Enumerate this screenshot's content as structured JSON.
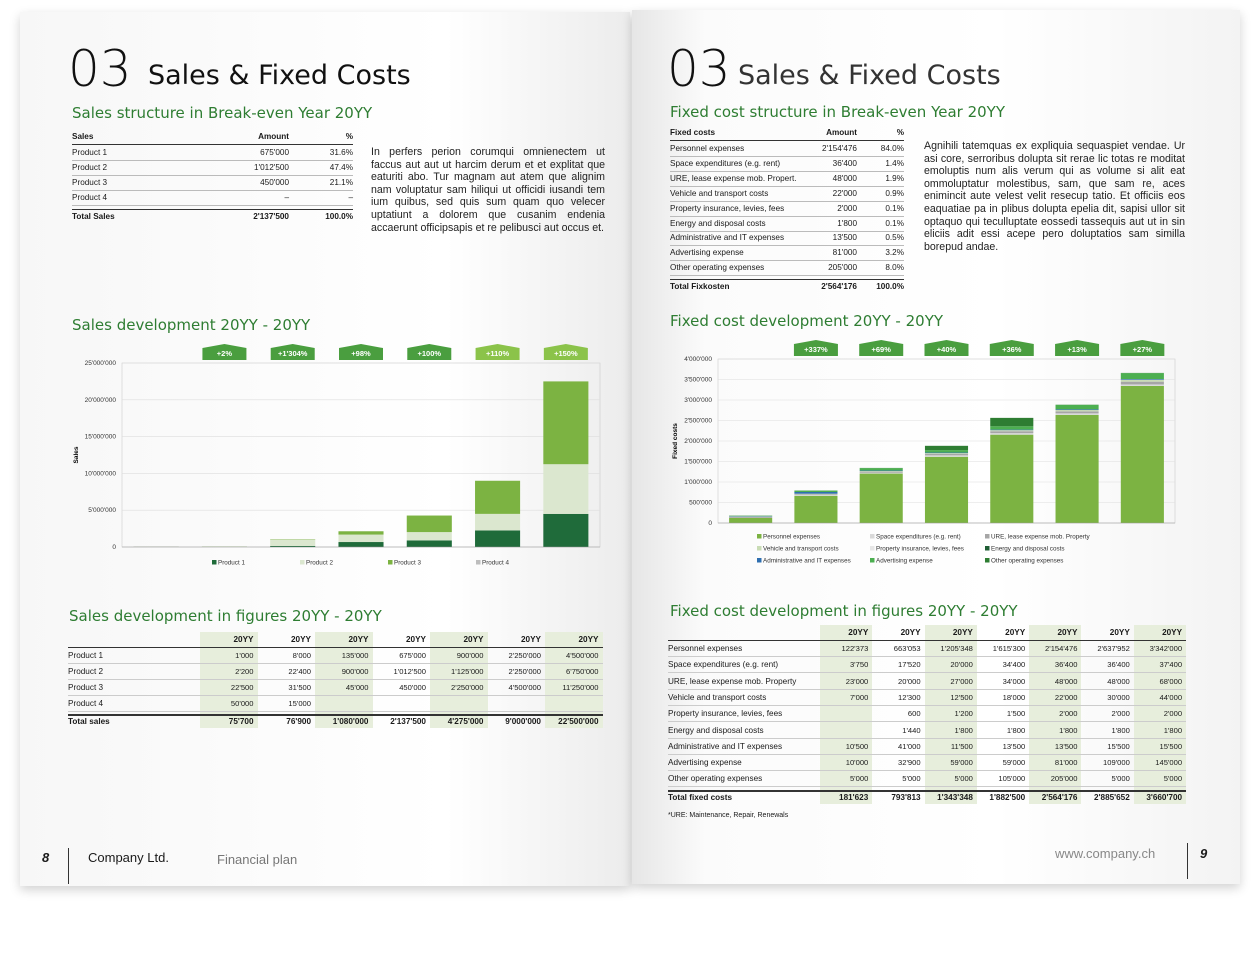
{
  "left": {
    "section_number": "03",
    "section_title": "Sales & Fixed Costs",
    "structure_title": "Sales structure in Break-even Year 20YY",
    "structure_table": {
      "header": [
        "Sales",
        "Amount",
        "%"
      ],
      "rows": [
        [
          "Product 1",
          "675'000",
          "31.6%"
        ],
        [
          "Product 2",
          "1'012'500",
          "47.4%"
        ],
        [
          "Product 3",
          "450'000",
          "21.1%"
        ],
        [
          "Product 4",
          "–",
          "–"
        ]
      ],
      "total": [
        "Total Sales",
        "2'137'500",
        "100.0%"
      ]
    },
    "paragraph": "In perfers perion corumqui omnienectem ut faccus aut aut ut harcim derum et et explitat que eaturiti abo. Tur magnam aut atem que alignim nam voluptatur sam hiliqui ut officidi iusandi tem ium quibus, sed quis sum quam quo velecer uptatiunt a dolorem que cusanim endenia accaerunt officipsapis et re pelibusci aut occus et.",
    "chart_title": "Sales development 20YY - 20YY",
    "figures_title": "Sales development in figures 20YY - 20YY",
    "figures_table": {
      "header": [
        "20YY",
        "20YY",
        "20YY",
        "20YY",
        "20YY",
        "20YY",
        "20YY"
      ],
      "rows": [
        [
          "Product 1",
          "1'000",
          "8'000",
          "135'000",
          "675'000",
          "900'000",
          "2'250'000",
          "4'500'000"
        ],
        [
          "Product 2",
          "2'200",
          "22'400",
          "900'000",
          "1'012'500",
          "1'125'000",
          "2'250'000",
          "6'750'000"
        ],
        [
          "Product 3",
          "22'500",
          "31'500",
          "45'000",
          "450'000",
          "2'250'000",
          "4'500'000",
          "11'250'000"
        ],
        [
          "Product 4",
          "50'000",
          "15'000"
        ]
      ],
      "total": [
        "Total sales",
        "75'700",
        "76'900",
        "1'080'000",
        "2'137'500",
        "4'275'000",
        "9'000'000",
        "22'500'000"
      ]
    },
    "footer": {
      "page": "8",
      "company": "Company Ltd.",
      "document": "Financial plan"
    }
  },
  "right": {
    "section_number": "03",
    "section_title": "Sales & Fixed Costs",
    "structure_title": "Fixed cost structure in Break-even Year 20YY",
    "structure_table": {
      "header": [
        "Fixed costs",
        "Amount",
        "%"
      ],
      "rows": [
        [
          "Personnel expenses",
          "2'154'476",
          "84.0%"
        ],
        [
          "Space expenditures (e.g. rent)",
          "36'400",
          "1.4%"
        ],
        [
          "URE, lease expense mob. Propert.",
          "48'000",
          "1.9%"
        ],
        [
          "Vehicle and transport costs",
          "22'000",
          "0.9%"
        ],
        [
          "Property insurance, levies, fees",
          "2'000",
          "0.1%"
        ],
        [
          "Energy and disposal costs",
          "1'800",
          "0.1%"
        ],
        [
          "Administrative and IT expenses",
          "13'500",
          "0.5%"
        ],
        [
          "Advertising expense",
          "81'000",
          "3.2%"
        ],
        [
          "Other operating expenses",
          "205'000",
          "8.0%"
        ]
      ],
      "total": [
        "Total Fixkosten",
        "2'564'176",
        "100.0%"
      ]
    },
    "paragraph": "Agnihili tatemquas ex expliquia sequaspiet vendae. Ur asi core, serroribus dolupta sit rerae lic totas re moditat emoluptis num alis verum qui as volume si alit eat ommoluptatur molestibus, sam, que sam re, aces enimincit aute velest velit resecup tatio. Et officiis eos eaquatiae pa in plibus dolupta epelia dit, sapisi ullor sit optaquo qui teculluptate eossedi tassequis aut ut in sin eliciis adit essi acepe pero doluptatios sam similla borepud andae.",
    "chart_title": "Fixed cost development 20YY - 20YY",
    "figures_title": "Fixed cost development in figures 20YY - 20YY",
    "figures_table": {
      "header": [
        "20YY",
        "20YY",
        "20YY",
        "20YY",
        "20YY",
        "20YY",
        "20YY"
      ],
      "rows": [
        [
          "Personnel expenses",
          "122'373",
          "663'053",
          "1'205'348",
          "1'615'300",
          "2'154'476",
          "2'637'952",
          "3'342'000"
        ],
        [
          "Space expenditures (e.g. rent)",
          "3'750",
          "17'520",
          "20'000",
          "34'400",
          "36'400",
          "36'400",
          "37'400"
        ],
        [
          "URE, lease expense mob. Property",
          "23'000",
          "20'000",
          "27'000",
          "34'000",
          "48'000",
          "48'000",
          "68'000"
        ],
        [
          "Vehicle and transport costs",
          "7'000",
          "12'300",
          "12'500",
          "18'000",
          "22'000",
          "30'000",
          "44'000"
        ],
        [
          "Property insurance, levies, fees",
          null,
          "600",
          "1'200",
          "1'500",
          "2'000",
          "2'000",
          "2'000"
        ],
        [
          "Energy and disposal costs",
          null,
          "1'440",
          "1'800",
          "1'800",
          "1'800",
          "1'800",
          "1'800"
        ],
        [
          "Administrative and IT expenses",
          "10'500",
          "41'000",
          "11'500",
          "13'500",
          "13'500",
          "15'500",
          "15'500"
        ],
        [
          "Advertising expense",
          "10'000",
          "32'900",
          "59'000",
          "59'000",
          "81'000",
          "109'000",
          "145'000"
        ],
        [
          "Other operating expenses",
          "5'000",
          "5'000",
          "5'000",
          "105'000",
          "205'000",
          "5'000",
          "5'000"
        ]
      ],
      "total": [
        "Total fixed costs",
        "181'623",
        "793'813",
        "1'343'348",
        "1'882'500",
        "2'564'176",
        "2'885'652",
        "3'660'700"
      ]
    },
    "footnote": "*URE: Maintenance, Repair, Renewals",
    "footer": {
      "website": "www.company.ch",
      "page": "9"
    }
  },
  "chart_data": [
    {
      "type": "stacked_bar",
      "ylabel": "Sales",
      "ylim": [
        0,
        25000000
      ],
      "yticks": [
        0,
        {
          "value": 5000000,
          "label": "5'000'000"
        },
        {
          "value": 10000000,
          "label": "10'000'000"
        },
        {
          "value": 15000000,
          "label": "15'000'000"
        },
        {
          "value": 20000000,
          "label": "20'000'000"
        },
        {
          "value": 25000000,
          "label": "25'000'000"
        }
      ],
      "grid": true,
      "annotations": [
        "+2%",
        "+1'304%",
        "+98%",
        "+100%",
        "+110%",
        "+150%"
      ],
      "series": [
        {
          "name": "Product 1",
          "color": "#1f6b3a",
          "values": [
            1000,
            8000,
            135000,
            675000,
            900000,
            2250000,
            4500000
          ]
        },
        {
          "name": "Product 2",
          "color": "#dbe7cf",
          "values": [
            2200,
            22400,
            900000,
            1012500,
            1125000,
            2250000,
            6750000
          ]
        },
        {
          "name": "Product 3",
          "color": "#7cb342",
          "values": [
            22500,
            31500,
            45000,
            450000,
            2250000,
            4500000,
            11250000
          ]
        },
        {
          "name": "Product 4",
          "color": "#bdbdbd",
          "values": [
            50000,
            15000,
            null,
            null,
            null,
            null,
            null
          ]
        }
      ]
    },
    {
      "type": "stacked_bar",
      "ylabel": "Fixed costs",
      "ylim": [
        0,
        4000000
      ],
      "yticks": [
        0,
        {
          "value": 500000,
          "label": "500'000"
        },
        {
          "value": 1000000,
          "label": "1'000'000"
        },
        {
          "value": 1500000,
          "label": "1'500'000"
        },
        {
          "value": 2000000,
          "label": "2'000'000"
        },
        {
          "value": 2500000,
          "label": "2'500'000"
        },
        {
          "value": 3000000,
          "label": "3'000'000"
        },
        {
          "value": 3500000,
          "label": "3'500'000"
        },
        {
          "value": 4000000,
          "label": "4'000'000"
        }
      ],
      "grid": true,
      "annotations": [
        "+337%",
        "+69%",
        "+40%",
        "+36%",
        "+13%",
        "+27%"
      ],
      "series": [
        {
          "name": "Personnel expenses",
          "color": "#7cb342",
          "values": [
            122373,
            663053,
            1205348,
            1615300,
            2154476,
            2637952,
            3342000
          ]
        },
        {
          "name": "Space expenditures (e.g. rent)",
          "color": "#d9d9d9",
          "values": [
            3750,
            17520,
            20000,
            34400,
            36400,
            36400,
            37400
          ]
        },
        {
          "name": "URE, lease expense mob. Property",
          "color": "#a6a6a6",
          "values": [
            23000,
            20000,
            27000,
            34000,
            48000,
            48000,
            68000
          ]
        },
        {
          "name": "Vehicle and transport costs",
          "color": "#c9dcb5",
          "values": [
            7000,
            12300,
            12500,
            18000,
            22000,
            30000,
            44000
          ]
        },
        {
          "name": "Property insurance, levies, fees",
          "color": "#e6e6e6",
          "values": [
            null,
            600,
            1200,
            1500,
            2000,
            2000,
            2000
          ]
        },
        {
          "name": "Energy and disposal costs",
          "color": "#1f5e35",
          "values": [
            null,
            1440,
            1800,
            1800,
            1800,
            1800,
            1800
          ]
        },
        {
          "name": "Administrative and IT expenses",
          "color": "#2f6fb0",
          "values": [
            10500,
            41000,
            11500,
            13500,
            13500,
            15500,
            15500
          ]
        },
        {
          "name": "Advertising expense",
          "color": "#4caf50",
          "values": [
            10000,
            32900,
            59000,
            59000,
            81000,
            109000,
            145000
          ]
        },
        {
          "name": "Other operating expenses",
          "color": "#2e7d32",
          "values": [
            5000,
            5000,
            5000,
            105000,
            205000,
            5000,
            5000
          ]
        }
      ]
    }
  ]
}
